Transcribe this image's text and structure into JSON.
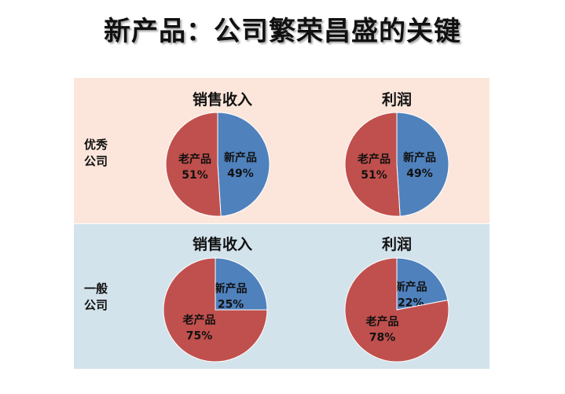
{
  "title": "新产品：公司繁荣昌盛的关键",
  "rows": [
    {
      "label_line1": "优秀",
      "label_line2": "公司"
    },
    {
      "label_line1": "一般",
      "label_line2": "公司"
    }
  ],
  "colors": {
    "new_product": "#4f81bd",
    "old_product": "#c0504d",
    "top_band": "#fce6db",
    "bottom_band": "#d3e3eb"
  },
  "chart_data": [
    {
      "type": "pie",
      "title": "销售收入",
      "group": "优秀公司",
      "slices": [
        {
          "label": "新产品",
          "value": 49,
          "value_label": "49%"
        },
        {
          "label": "老产品",
          "value": 51,
          "value_label": "51%"
        }
      ]
    },
    {
      "type": "pie",
      "title": "利润",
      "group": "优秀公司",
      "slices": [
        {
          "label": "新产品",
          "value": 49,
          "value_label": "49%"
        },
        {
          "label": "老产品",
          "value": 51,
          "value_label": "51%"
        }
      ]
    },
    {
      "type": "pie",
      "title": "销售收入",
      "group": "一般公司",
      "slices": [
        {
          "label": "新产品",
          "value": 25,
          "value_label": "25%"
        },
        {
          "label": "老产品",
          "value": 75,
          "value_label": "75%"
        }
      ]
    },
    {
      "type": "pie",
      "title": "利润",
      "group": "一般公司",
      "slices": [
        {
          "label": "新产品",
          "value": 22,
          "value_label": "22%"
        },
        {
          "label": "老产品",
          "value": 78,
          "value_label": "78%"
        }
      ]
    }
  ]
}
